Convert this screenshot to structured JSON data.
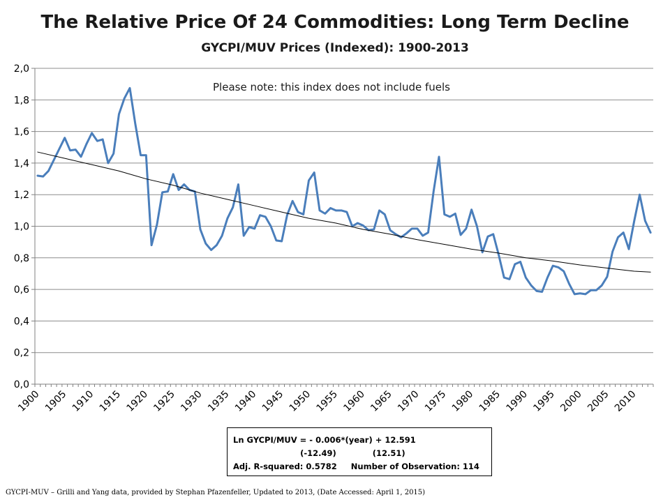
{
  "chart_data": {
    "type": "line",
    "title": "The Relative Price Of 24 Commodities: Long Term Decline",
    "subtitle": "GYCPI/MUV Prices (Indexed): 1900-2013",
    "note": "Please note: this index does not include fuels",
    "xlabel": "",
    "ylabel": "",
    "xlim": [
      1900,
      2013
    ],
    "ylim": [
      0,
      2.0
    ],
    "grid": true,
    "y_tick_labels": [
      "0,0",
      "0,2",
      "0,4",
      "0,6",
      "0,8",
      "1,0",
      "1,2",
      "1,4",
      "1,6",
      "1,8",
      "2,0"
    ],
    "x_tick_labels": [
      "1900",
      "1905",
      "1910",
      "1915",
      "1920",
      "1925",
      "1930",
      "1935",
      "1940",
      "1945",
      "1950",
      "1955",
      "1960",
      "1965",
      "1970",
      "1975",
      "1980",
      "1985",
      "1990",
      "1995",
      "2000",
      "2005",
      "2010"
    ],
    "series": [
      {
        "color": "#4a7ebb",
        "x": [
          1900,
          1901,
          1902,
          1903,
          1904,
          1905,
          1906,
          1907,
          1908,
          1909,
          1910,
          1911,
          1912,
          1913,
          1914,
          1915,
          1916,
          1917,
          1918,
          1919,
          1920,
          1921,
          1922,
          1923,
          1924,
          1925,
          1926,
          1927,
          1928,
          1929,
          1930,
          1931,
          1932,
          1933,
          1934,
          1935,
          1936,
          1937,
          1938,
          1939,
          1940,
          1941,
          1942,
          1943,
          1944,
          1945,
          1946,
          1947,
          1948,
          1949,
          1950,
          1951,
          1952,
          1953,
          1954,
          1955,
          1956,
          1957,
          1958,
          1959,
          1960,
          1961,
          1962,
          1963,
          1964,
          1965,
          1966,
          1967,
          1968,
          1969,
          1970,
          1971,
          1972,
          1973,
          1974,
          1975,
          1976,
          1977,
          1978,
          1979,
          1980,
          1981,
          1982,
          1983,
          1984,
          1985,
          1986,
          1987,
          1988,
          1989,
          1990,
          1991,
          1992,
          1993,
          1994,
          1995,
          1996,
          1997,
          1998,
          1999,
          2000,
          2001,
          2002,
          2003,
          2004,
          2005,
          2006,
          2007,
          2008,
          2009,
          2010,
          2011,
          2012,
          2013
        ],
        "values": [
          1.32,
          1.315,
          1.35,
          1.42,
          1.49,
          1.56,
          1.48,
          1.485,
          1.44,
          1.52,
          1.59,
          1.54,
          1.55,
          1.4,
          1.46,
          1.71,
          1.81,
          1.875,
          1.65,
          1.45,
          1.45,
          0.88,
          1.01,
          1.215,
          1.22,
          1.33,
          1.23,
          1.265,
          1.23,
          1.22,
          0.98,
          0.89,
          0.85,
          0.88,
          0.94,
          1.05,
          1.12,
          1.265,
          0.94,
          0.995,
          0.985,
          1.07,
          1.06,
          1.0,
          0.91,
          0.905,
          1.07,
          1.16,
          1.09,
          1.075,
          1.29,
          1.34,
          1.1,
          1.08,
          1.115,
          1.1,
          1.1,
          1.09,
          1.0,
          1.02,
          1.005,
          0.975,
          0.98,
          1.1,
          1.075,
          0.975,
          0.95,
          0.93,
          0.955,
          0.985,
          0.985,
          0.94,
          0.96,
          1.22,
          1.44,
          1.075,
          1.06,
          1.08,
          0.945,
          0.985,
          1.105,
          1.0,
          0.835,
          0.935,
          0.95,
          0.82,
          0.675,
          0.665,
          0.76,
          0.775,
          0.675,
          0.625,
          0.59,
          0.585,
          0.675,
          0.75,
          0.74,
          0.715,
          0.635,
          0.57,
          0.575,
          0.57,
          0.595,
          0.595,
          0.625,
          0.68,
          0.84,
          0.93,
          0.96,
          0.855,
          1.035,
          1.2,
          1.035,
          0.96
        ]
      },
      {
        "color": "#000000",
        "x": [
          1900,
          1905,
          1910,
          1915,
          1920,
          1925,
          1930,
          1935,
          1940,
          1945,
          1950,
          1955,
          1960,
          1965,
          1970,
          1975,
          1980,
          1985,
          1990,
          1995,
          2000,
          2005,
          2010,
          2013
        ],
        "values": [
          1.47,
          1.43,
          1.39,
          1.35,
          1.3,
          1.26,
          1.21,
          1.17,
          1.13,
          1.09,
          1.05,
          1.02,
          0.98,
          0.95,
          0.915,
          0.885,
          0.855,
          0.83,
          0.8,
          0.78,
          0.755,
          0.735,
          0.715,
          0.71
        ]
      }
    ]
  },
  "equation_box": {
    "line1": "Ln GYCPI/MUV = - 0.006*(year) + 12.591",
    "line2": "                        (-12.49)             (12.51)",
    "line3": "Adj. R-squared: 0.5782     Number of Observation: 114"
  },
  "source": "GYCPI-MUV – Grilli  and Yang data, provided by Stephan Pfazenfeller, Updated to 2013,  (Date Accessed: April  1, 2015)"
}
